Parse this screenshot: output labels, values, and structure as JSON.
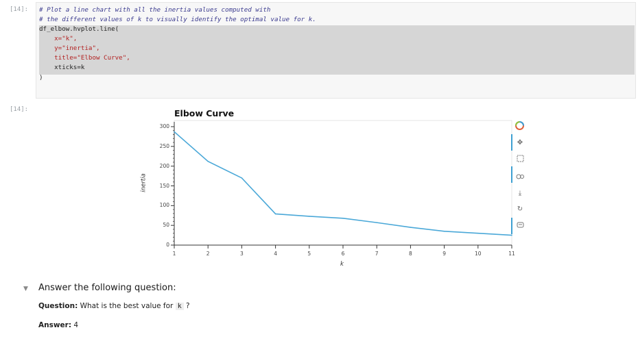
{
  "cells": {
    "code_prompt": "[14]:",
    "output_prompt": "[14]:",
    "code_lines": [
      "# Plot a line chart with all the inertia values computed with",
      "# the different values of k to visually identify the optimal value for k.",
      "df_elbow.hvplot.line(",
      "    x=\"k\",",
      "    y=\"inertia\",",
      "    title=\"Elbow Curve\",",
      "    xticks=k",
      ")"
    ]
  },
  "chart_data": {
    "type": "line",
    "title": "Elbow Curve",
    "xlabel": "k",
    "ylabel": "inertia",
    "x": [
      1,
      2,
      3,
      4,
      5,
      6,
      7,
      8,
      9,
      10,
      11
    ],
    "y": [
      287,
      212,
      170,
      79,
      73,
      68,
      57,
      45,
      35,
      30,
      25
    ],
    "xlim": [
      1,
      11
    ],
    "ylim": [
      0,
      300
    ],
    "yticks": [
      0,
      50,
      100,
      150,
      200,
      250,
      300
    ],
    "xticks": [
      1,
      2,
      3,
      4,
      5,
      6,
      7,
      8,
      9,
      10,
      11
    ],
    "line_color": "#4aa8d8",
    "grid": false
  },
  "toolbar": {
    "icons": [
      "bokeh-logo-icon",
      "pan-icon",
      "box-zoom-icon",
      "wheel-zoom-icon",
      "save-icon",
      "reset-icon",
      "hover-icon"
    ]
  },
  "markdown": {
    "heading": "Answer the following question:",
    "question_label": "Question:",
    "question_text": " What is the best value for ",
    "question_code": "k",
    "question_end": " ?",
    "answer_label": "Answer:",
    "answer_value": " 4"
  }
}
